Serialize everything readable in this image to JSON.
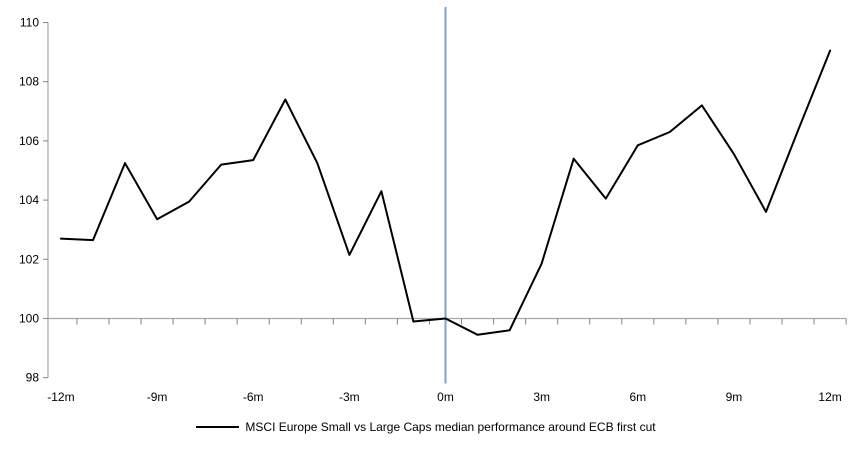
{
  "chart_data": {
    "type": "line",
    "title": "",
    "x": [
      -12,
      -11,
      -10,
      -9,
      -8,
      -7,
      -6,
      -5,
      -4,
      -3,
      -2,
      -1,
      0,
      1,
      2,
      3,
      4,
      5,
      6,
      7,
      8,
      9,
      10,
      11,
      12
    ],
    "series": [
      {
        "name": "MSCI Europe Small vs Large Caps median performance around ECB first cut",
        "color": "#000000",
        "values": [
          102.7,
          102.65,
          105.25,
          103.35,
          103.95,
          105.2,
          105.35,
          107.4,
          105.25,
          102.15,
          104.3,
          99.9,
          100.0,
          99.45,
          99.6,
          101.85,
          105.4,
          104.05,
          105.85,
          106.3,
          107.2,
          105.55,
          103.6,
          106.35,
          109.05
        ]
      }
    ],
    "x_tick_months": [
      -12,
      -9,
      -6,
      -3,
      0,
      3,
      6,
      9,
      12
    ],
    "x_tick_labels": [
      "-12m",
      "-9m",
      "-6m",
      "-3m",
      "0m",
      "3m",
      "6m",
      "9m",
      "12m"
    ],
    "y_ticks": [
      98,
      100,
      102,
      104,
      106,
      108,
      110
    ],
    "ylim": [
      98,
      110.5
    ],
    "xlim": [
      -12.5,
      12.5
    ],
    "grid": "horizontal baseline at 100 only, minor category ticks below it",
    "baseline_y": 100,
    "event_line": {
      "x_month": 0,
      "color": "#7ca5ce"
    },
    "axis_color": "#a8a8a8",
    "tick_color": "#8c8c8c",
    "legend_position": "bottom-center"
  },
  "legend": {
    "label": "MSCI Europe Small vs Large Caps median performance around ECB first cut"
  }
}
